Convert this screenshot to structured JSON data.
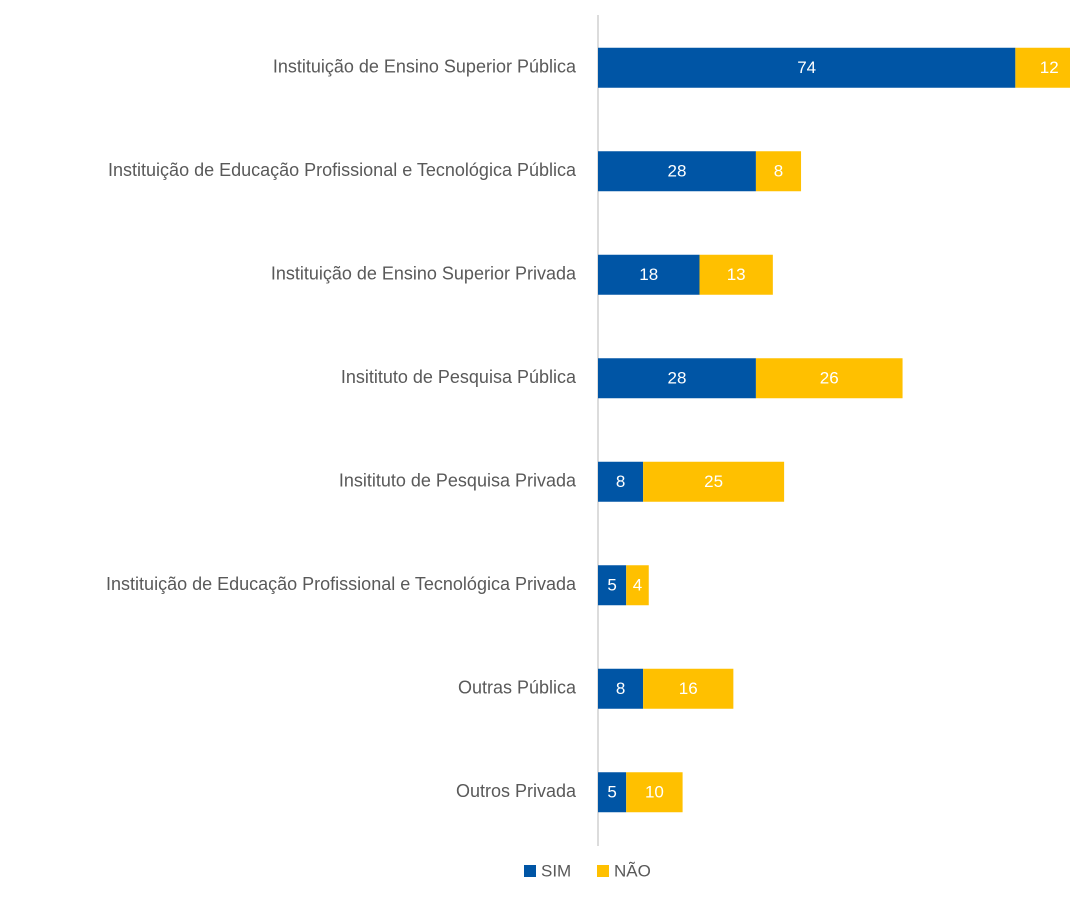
{
  "chart_data": {
    "type": "stacked-bar-horizontal",
    "categories": [
      "Instituição de Ensino Superior Pública",
      "Instituição de Educação Profissional e Tecnológica Pública",
      "Instituição de Ensino Superior Privada",
      "Insitituto de Pesquisa Pública",
      "Insitituto de Pesquisa Privada",
      "Instituição de Educação Profissional e Tecnológica Privada",
      "Outras Pública",
      "Outros Privada"
    ],
    "series": [
      {
        "name": "SIM",
        "color": "#0055a5",
        "values": [
          74,
          28,
          18,
          28,
          8,
          5,
          8,
          5
        ]
      },
      {
        "name": "NÃO",
        "color": "#ffc000",
        "values": [
          12,
          8,
          13,
          26,
          25,
          4,
          16,
          10
        ]
      }
    ],
    "legend": "bottom"
  }
}
